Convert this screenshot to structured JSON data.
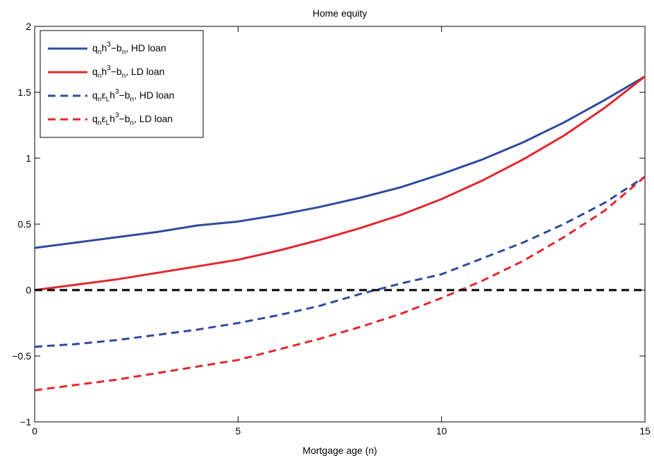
{
  "chart_data": {
    "type": "line",
    "title": "Home equity",
    "xlabel": "Mortgage age (n)",
    "ylabel": "",
    "xlim": [
      0,
      15
    ],
    "ylim": [
      -1,
      2
    ],
    "xticks": [
      0,
      5,
      10,
      15
    ],
    "yticks": [
      -1,
      -0.5,
      0,
      0.5,
      1,
      1.5,
      2
    ],
    "ytick_labels": [
      "−1",
      "−0.5",
      "0",
      "0.5",
      "1",
      "1.5",
      "2"
    ],
    "x": [
      0,
      1,
      2,
      3,
      4,
      5,
      6,
      7,
      8,
      9,
      10,
      11,
      12,
      13,
      14,
      15
    ],
    "legend_position": "top-left",
    "grid": false,
    "series": [
      {
        "color": "#2e4a9e",
        "style": "solid",
        "legend": {
          "base": "q",
          "sub1": "n",
          "mid": "h",
          "sup": "3",
          "tail": "−b",
          "sub2": "n",
          "suffix": ", HD loan"
        },
        "values": [
          0.32,
          0.36,
          0.4,
          0.44,
          0.49,
          0.52,
          0.57,
          0.63,
          0.7,
          0.78,
          0.88,
          0.99,
          1.12,
          1.27,
          1.44,
          1.62
        ]
      },
      {
        "color": "#e3262d",
        "style": "solid",
        "legend": {
          "base": "q",
          "sub1": "n",
          "mid": "h",
          "sup": "3",
          "tail": "−b",
          "sub2": "n",
          "suffix": ", LD loan"
        },
        "values": [
          0.0,
          0.04,
          0.08,
          0.13,
          0.18,
          0.23,
          0.3,
          0.38,
          0.47,
          0.57,
          0.69,
          0.83,
          0.99,
          1.17,
          1.38,
          1.62
        ]
      },
      {
        "color": "#2e4a9e",
        "style": "dashed",
        "legend": {
          "base": "q",
          "sub1": "n",
          "eps": "ε",
          "epssub": "L",
          "mid": "h",
          "sup": "3",
          "tail": "−b",
          "sub2": "n",
          "suffix": ", HD loan"
        },
        "values": [
          -0.43,
          -0.41,
          -0.38,
          -0.34,
          -0.3,
          -0.25,
          -0.19,
          -0.12,
          -0.03,
          0.05,
          0.12,
          0.24,
          0.36,
          0.5,
          0.66,
          0.86
        ]
      },
      {
        "color": "#e3262d",
        "style": "dashed",
        "legend": {
          "base": "q",
          "sub1": "n",
          "eps": "ε",
          "epssub": "L",
          "mid": "h",
          "sup": "3",
          "tail": "−b",
          "sub2": "n",
          "suffix": ", LD loan"
        },
        "values": [
          -0.76,
          -0.72,
          -0.68,
          -0.63,
          -0.58,
          -0.53,
          -0.45,
          -0.37,
          -0.28,
          -0.18,
          -0.06,
          0.07,
          0.22,
          0.4,
          0.6,
          0.86
        ]
      },
      {
        "color": "#000000",
        "style": "dashed",
        "values": [
          0,
          0,
          0,
          0,
          0,
          0,
          0,
          0,
          0,
          0,
          0,
          0,
          0,
          0,
          0,
          0
        ]
      }
    ]
  }
}
